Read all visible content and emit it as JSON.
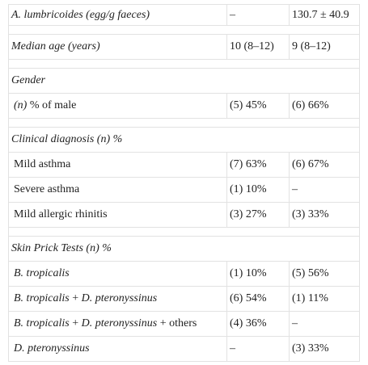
{
  "table": {
    "sections": [
      {
        "rows": [
          {
            "label": [
              {
                "text": "A. lumbricoides (egg/g faeces)",
                "italic": true
              }
            ],
            "values": [
              "–",
              "130.7 ± 40.9"
            ]
          }
        ]
      },
      {
        "rows": [
          {
            "label": [
              {
                "text": "Median age (years)",
                "italic": true
              }
            ],
            "values": [
              "10 (8–12)",
              "9 (8–12)"
            ]
          }
        ]
      },
      {
        "heading": "Gender",
        "rows": [
          {
            "label": [
              {
                "text": "(n)",
                "italic": true
              },
              {
                "text": " % of male",
                "italic": false
              }
            ],
            "values": [
              "(5) 45%",
              "(6) 66%"
            ]
          }
        ]
      },
      {
        "heading": "Clinical diagnosis (n) %",
        "rows": [
          {
            "label": [
              {
                "text": "Mild asthma",
                "italic": false
              }
            ],
            "values": [
              "(7) 63%",
              "(6) 67%"
            ]
          },
          {
            "label": [
              {
                "text": "Severe asthma",
                "italic": false
              }
            ],
            "values": [
              "(1) 10%",
              "–"
            ]
          },
          {
            "label": [
              {
                "text": "Mild allergic rhinitis",
                "italic": false
              }
            ],
            "values": [
              "(3) 27%",
              "(3) 33%"
            ]
          }
        ]
      },
      {
        "heading": "Skin Prick Tests (n) %",
        "rows": [
          {
            "label": [
              {
                "text": "B. tropicalis",
                "italic": true
              }
            ],
            "values": [
              "(1) 10%",
              "(5) 56%"
            ]
          },
          {
            "label": [
              {
                "text": "B. tropicalis",
                "italic": true
              },
              {
                "text": " + ",
                "italic": false
              },
              {
                "text": "D. pteronyssinus",
                "italic": true
              }
            ],
            "values": [
              "(6) 54%",
              "(1) 11%"
            ]
          },
          {
            "label": [
              {
                "text": "B. tropicalis",
                "italic": true
              },
              {
                "text": " + ",
                "italic": false
              },
              {
                "text": "D. pteronyssinus",
                "italic": true
              },
              {
                "text": " + others",
                "italic": false
              }
            ],
            "values": [
              "(4) 36%",
              "–"
            ]
          },
          {
            "label": [
              {
                "text": "D. pteronyssinus",
                "italic": true
              }
            ],
            "values": [
              "–",
              "(3) 33%"
            ]
          }
        ]
      }
    ]
  }
}
